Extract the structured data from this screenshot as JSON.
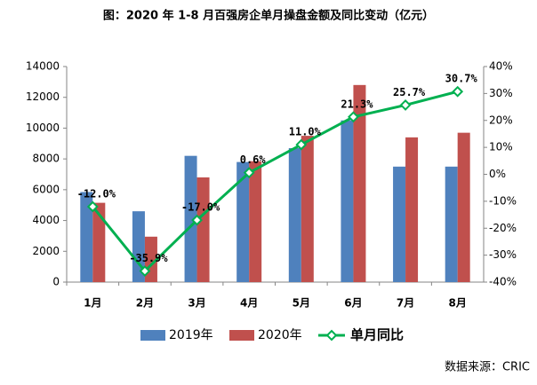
{
  "chart_data": {
    "type": "bar",
    "title": "图：2020 年 1-8 月百强房企单月操盘金额及同比变动（亿元）",
    "source": "数据来源：CRIC",
    "categories": [
      "1月",
      "2月",
      "3月",
      "4月",
      "5月",
      "6月",
      "7月",
      "8月"
    ],
    "series": [
      {
        "name": "2019年",
        "type": "bar",
        "color": "#4f81bd",
        "values": [
          5850,
          4600,
          8200,
          7800,
          8700,
          10500,
          7500,
          7500
        ]
      },
      {
        "name": "2020年",
        "type": "bar",
        "color": "#c0504d",
        "values": [
          5150,
          2950,
          6800,
          7850,
          9500,
          12800,
          9400,
          9700
        ]
      },
      {
        "name": "单月同比",
        "type": "line",
        "axis": "y2",
        "color": "#00b050",
        "values": [
          -12.0,
          -35.9,
          -17.0,
          0.6,
          11.0,
          21.3,
          25.7,
          30.7
        ],
        "value_labels": [
          "-12.0%",
          "-35.9%",
          "-17.0%",
          "0.6%",
          "11.0%",
          "21.3%",
          "25.7%",
          "30.7%"
        ]
      }
    ],
    "ylim": [
      0,
      14000
    ],
    "yticks": [
      0,
      2000,
      4000,
      6000,
      8000,
      10000,
      12000,
      14000
    ],
    "y2lim": [
      -40,
      40
    ],
    "y2ticks": [
      {
        "value": -40,
        "label": "-40%"
      },
      {
        "value": -30,
        "label": "-30%"
      },
      {
        "value": -20,
        "label": "-20%"
      },
      {
        "value": -10,
        "label": "-10%"
      },
      {
        "value": 0,
        "label": "0%"
      },
      {
        "value": 10,
        "label": "10%"
      },
      {
        "value": 20,
        "label": "20%"
      },
      {
        "value": 30,
        "label": "30%"
      },
      {
        "value": 40,
        "label": "40%"
      }
    ],
    "grid": false
  }
}
